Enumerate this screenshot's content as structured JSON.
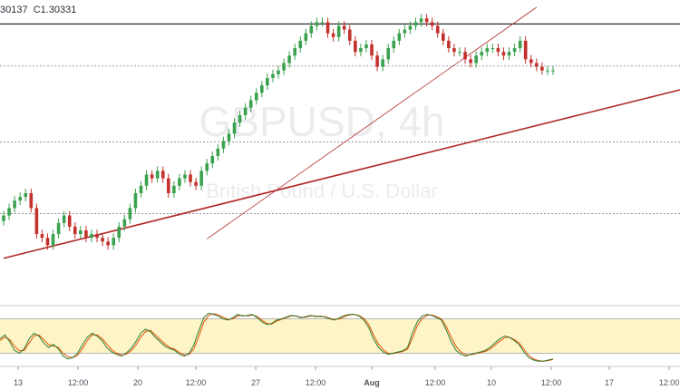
{
  "header": {
    "ohlc_text": "30137  C1.30331"
  },
  "watermark": {
    "main": "GBPUSD, 4h",
    "sub": "British Pound / U.S. Dollar"
  },
  "colors": {
    "bull": "#3aa14f",
    "bear": "#c4302b",
    "trendline": "#b02a2a",
    "stoch_k": "#2e7d32",
    "stoch_d": "#e65100",
    "stoch_band": "#fdf5c7"
  },
  "chart_data": {
    "type": "line",
    "title": "",
    "xlabel": "",
    "ylabel": "",
    "x_ticks": [
      "13",
      "12:00",
      "20",
      "12:00",
      "27",
      "12:00",
      "Aug",
      "12:00",
      "10",
      "12:00",
      "17",
      "12:00"
    ],
    "last_close": 1.30331,
    "price_series": {
      "name": "",
      "x": [
        0,
        1,
        2,
        3,
        4,
        5,
        6,
        7,
        8,
        9,
        10,
        11,
        12,
        13,
        14,
        15,
        16,
        17,
        18,
        19,
        20,
        21,
        22,
        23,
        24,
        25,
        26,
        27,
        28,
        29,
        30,
        31,
        32,
        33,
        34,
        35,
        36,
        37,
        38,
        39,
        40,
        41,
        42,
        43,
        44,
        45,
        46,
        47,
        48,
        49,
        50,
        51,
        52,
        53,
        54,
        55,
        56,
        57,
        58,
        59,
        60,
        61,
        62,
        63,
        64,
        65,
        66,
        67,
        68,
        69,
        70,
        71,
        72,
        73,
        74,
        75,
        76,
        77,
        78,
        79,
        80,
        81,
        82,
        83,
        84,
        85,
        86,
        87,
        88,
        89,
        90,
        91,
        92,
        93,
        94,
        95,
        96,
        97,
        98,
        99,
        100
      ],
      "close": [
        1.264,
        1.266,
        1.268,
        1.269,
        1.27,
        1.266,
        1.259,
        1.258,
        1.256,
        1.259,
        1.262,
        1.264,
        1.261,
        1.259,
        1.26,
        1.258,
        1.259,
        1.258,
        1.257,
        1.256,
        1.258,
        1.261,
        1.263,
        1.266,
        1.27,
        1.272,
        1.275,
        1.274,
        1.276,
        1.274,
        1.27,
        1.272,
        1.274,
        1.275,
        1.273,
        1.272,
        1.276,
        1.278,
        1.28,
        1.282,
        1.284,
        1.286,
        1.289,
        1.291,
        1.293,
        1.295,
        1.297,
        1.299,
        1.301,
        1.302,
        1.303,
        1.305,
        1.307,
        1.309,
        1.311,
        1.313,
        1.315,
        1.316,
        1.316,
        1.313,
        1.312,
        1.315,
        1.314,
        1.311,
        1.308,
        1.309,
        1.31,
        1.307,
        1.304,
        1.306,
        1.309,
        1.311,
        1.313,
        1.314,
        1.315,
        1.316,
        1.317,
        1.316,
        1.315,
        1.313,
        1.311,
        1.309,
        1.308,
        1.308,
        1.306,
        1.305,
        1.307,
        1.308,
        1.309,
        1.309,
        1.308,
        1.307,
        1.308,
        1.309,
        1.311,
        1.306,
        1.305,
        1.304,
        1.303,
        1.303,
        1.303
      ]
    },
    "horizontal_levels": [
      1.3155,
      1.3042,
      1.2838,
      1.2645
    ],
    "trendlines": [
      {
        "name": "",
        "x": [
          37,
          97
        ],
        "y": [
          1.2577,
          1.32
        ]
      },
      {
        "name": "",
        "x": [
          0,
          125
        ],
        "y": [
          1.2525,
          1.2985
        ]
      }
    ],
    "stochastic": {
      "band": [
        20,
        80
      ],
      "k": [
        45,
        52,
        40,
        25,
        20,
        28,
        45,
        55,
        50,
        38,
        30,
        35,
        28,
        15,
        10,
        12,
        20,
        35,
        48,
        55,
        50,
        42,
        30,
        22,
        18,
        15,
        20,
        28,
        40,
        55,
        62,
        58,
        48,
        40,
        32,
        28,
        25,
        18,
        15,
        20,
        35,
        60,
        82,
        90,
        88,
        85,
        80,
        78,
        82,
        88,
        85,
        86,
        88,
        82,
        75,
        70,
        72,
        78,
        80,
        83,
        86,
        85,
        82,
        84,
        86,
        84,
        85,
        83,
        80,
        78,
        82,
        86,
        88,
        88,
        85,
        78,
        65,
        45,
        30,
        22,
        18,
        20,
        22,
        24,
        30,
        55,
        75,
        85,
        88,
        86,
        82,
        78,
        60,
        40,
        25,
        18,
        15,
        18,
        20,
        22,
        25,
        30,
        38,
        45,
        50,
        48,
        42,
        35,
        22,
        12,
        8,
        6,
        6,
        8,
        10
      ],
      "d": [
        42,
        48,
        44,
        32,
        24,
        25,
        38,
        50,
        52,
        44,
        35,
        33,
        30,
        20,
        14,
        12,
        16,
        28,
        42,
        52,
        52,
        46,
        36,
        26,
        20,
        17,
        18,
        24,
        34,
        48,
        58,
        60,
        52,
        44,
        36,
        30,
        27,
        21,
        17,
        18,
        28,
        50,
        74,
        86,
        89,
        87,
        83,
        79,
        80,
        85,
        86,
        85,
        87,
        84,
        78,
        72,
        71,
        76,
        79,
        82,
        85,
        85,
        83,
        83,
        85,
        85,
        84,
        84,
        81,
        79,
        80,
        84,
        87,
        88,
        86,
        81,
        70,
        52,
        36,
        26,
        20,
        19,
        21,
        23,
        27,
        46,
        68,
        80,
        86,
        87,
        84,
        80,
        66,
        48,
        32,
        22,
        17,
        17,
        19,
        21,
        23,
        27,
        34,
        41,
        47,
        48,
        44,
        38,
        27,
        16,
        10,
        7,
        6,
        7,
        9
      ]
    }
  }
}
